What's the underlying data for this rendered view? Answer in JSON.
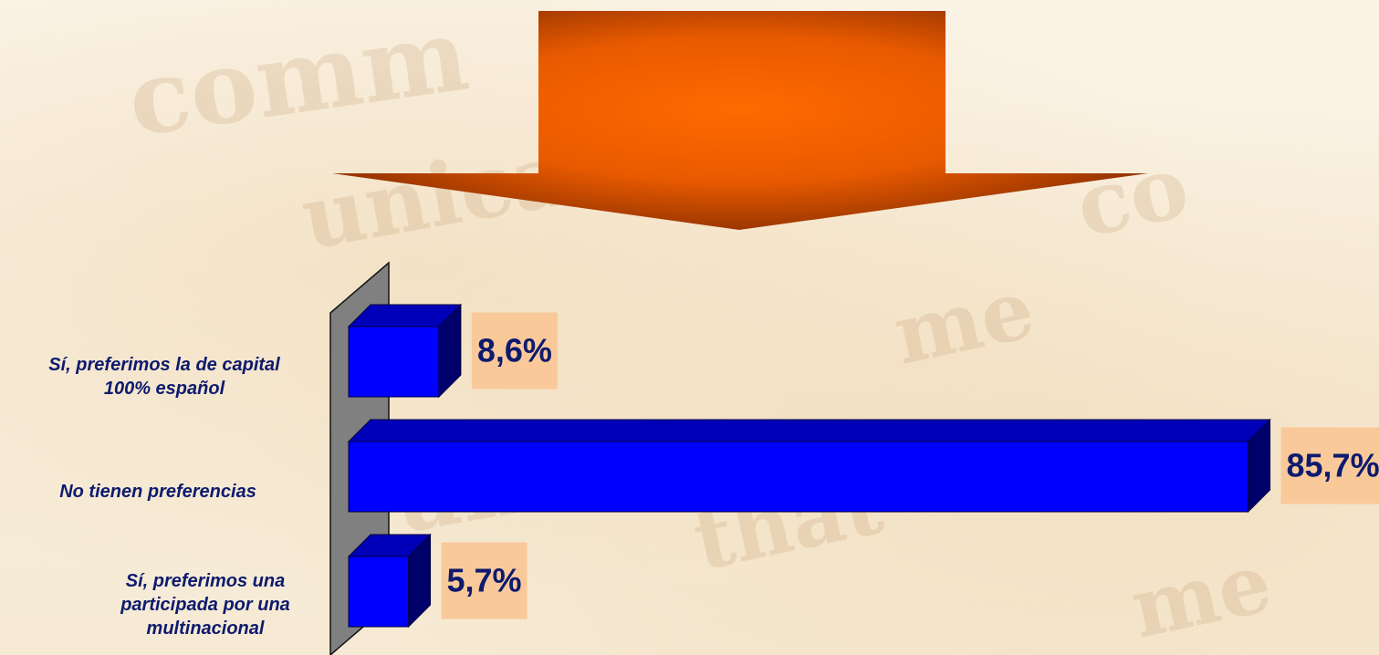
{
  "chart_data": {
    "type": "bar",
    "orientation": "horizontal",
    "three_d": true,
    "categories": [
      "Sí, preferimos la de capital 100% español",
      "No tienen preferencias",
      "Sí, preferimos una participada por una multinacional"
    ],
    "category_lines": [
      [
        "Sí, preferimos la de capital",
        "100% español"
      ],
      [
        "No tienen preferencias"
      ],
      [
        "Sí, preferimos una",
        "participada por una",
        "multinacional"
      ]
    ],
    "values": [
      8.6,
      85.7,
      5.7
    ],
    "value_labels": [
      "8,6%",
      "85,7%",
      "5,7%"
    ],
    "xlim": [
      0,
      90
    ],
    "bar_color": "#0000ff",
    "label_box_color": "#f9c99a",
    "label_text_color": "#0d1a6e",
    "grid": false,
    "legend": "none"
  },
  "decoration": {
    "arrow_color": "#ff6a00",
    "arrow_dark_color": "#8a2e00",
    "axis_wall_color": "#808080"
  }
}
